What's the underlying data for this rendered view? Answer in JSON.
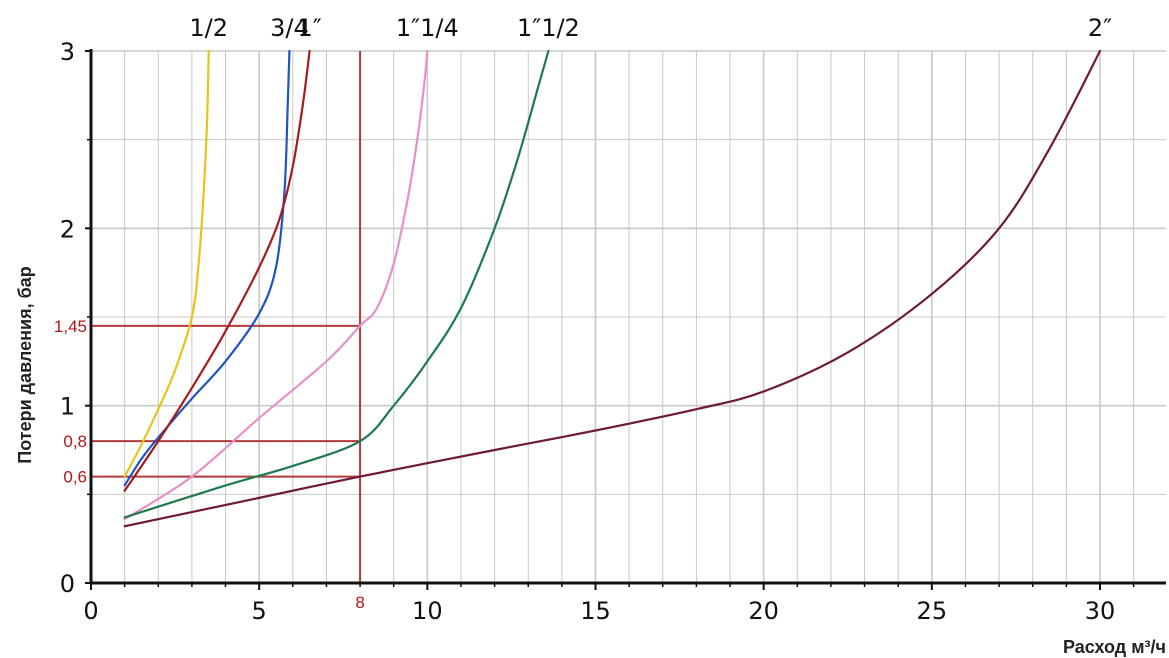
{
  "chart_data": {
    "type": "line",
    "title": "",
    "xlabel": "Расход м³/ч",
    "ylabel": "Потери давления, бар",
    "xlim": [
      0,
      32
    ],
    "ylim": [
      0,
      3
    ],
    "x_ticks": [
      0,
      5,
      10,
      15,
      20,
      25,
      30
    ],
    "x_tick_labels": [
      "0",
      "5",
      "10",
      "15",
      "20",
      "25",
      "30"
    ],
    "y_ticks": [
      0,
      1,
      2,
      3
    ],
    "y_tick_labels": [
      "0",
      "1",
      "2",
      "3"
    ],
    "grid": true,
    "series": [
      {
        "name": "1/2",
        "color": "#e8c31a",
        "x": [
          1,
          1.5,
          2,
          2.5,
          3,
          3.2,
          3.35,
          3.45,
          3.5
        ],
        "y": [
          0.6,
          0.78,
          0.98,
          1.2,
          1.5,
          1.8,
          2.2,
          2.6,
          3.0
        ]
      },
      {
        "name": "3/4",
        "color": "#1f55c0",
        "x": [
          1,
          1.5,
          2,
          3,
          4,
          5,
          5.5,
          5.75,
          5.85,
          5.9
        ],
        "y": [
          0.55,
          0.7,
          0.82,
          1.04,
          1.25,
          1.52,
          1.78,
          2.2,
          2.7,
          3.0
        ]
      },
      {
        "name": "1″",
        "color": "#a61c1c",
        "x": [
          1,
          2,
          3,
          4,
          5,
          5.6,
          6,
          6.3,
          6.5
        ],
        "y": [
          0.52,
          0.8,
          1.1,
          1.42,
          1.78,
          2.05,
          2.35,
          2.7,
          3.0
        ]
      },
      {
        "name": "1″1/4",
        "color": "#e691c8",
        "x": [
          1,
          3,
          5,
          7,
          8,
          8.5,
          9,
          9.4,
          9.7,
          9.9,
          10
        ],
        "y": [
          0.36,
          0.6,
          0.93,
          1.25,
          1.45,
          1.55,
          1.8,
          2.15,
          2.5,
          2.8,
          3.0
        ]
      },
      {
        "name": "1″1/2",
        "color": "#1e7a4e",
        "x": [
          1,
          4,
          6,
          8,
          9,
          10,
          11,
          12,
          12.7,
          13.3,
          13.6
        ],
        "y": [
          0.37,
          0.55,
          0.66,
          0.8,
          1.0,
          1.25,
          1.55,
          2.0,
          2.4,
          2.8,
          3.0
        ]
      },
      {
        "name": "2″",
        "color": "#6e1a3a",
        "x": [
          1,
          5,
          8,
          12,
          15,
          18,
          20,
          22.5,
          25,
          27,
          28.5,
          30
        ],
        "y": [
          0.32,
          0.48,
          0.6,
          0.75,
          0.86,
          0.98,
          1.08,
          1.3,
          1.63,
          2.0,
          2.45,
          3.0
        ]
      }
    ],
    "reference_lines": {
      "color": "#b23a3a",
      "vertical_x": 8,
      "vertical_label": "8",
      "horizontal": [
        {
          "y": 1.45,
          "label": "1,45"
        },
        {
          "y": 0.8,
          "label": "0,8"
        },
        {
          "y": 0.6,
          "label": "0,6"
        }
      ]
    },
    "colors": {
      "grid": "#c8c8c8",
      "axis": "#111111",
      "background": "#ffffff"
    }
  }
}
